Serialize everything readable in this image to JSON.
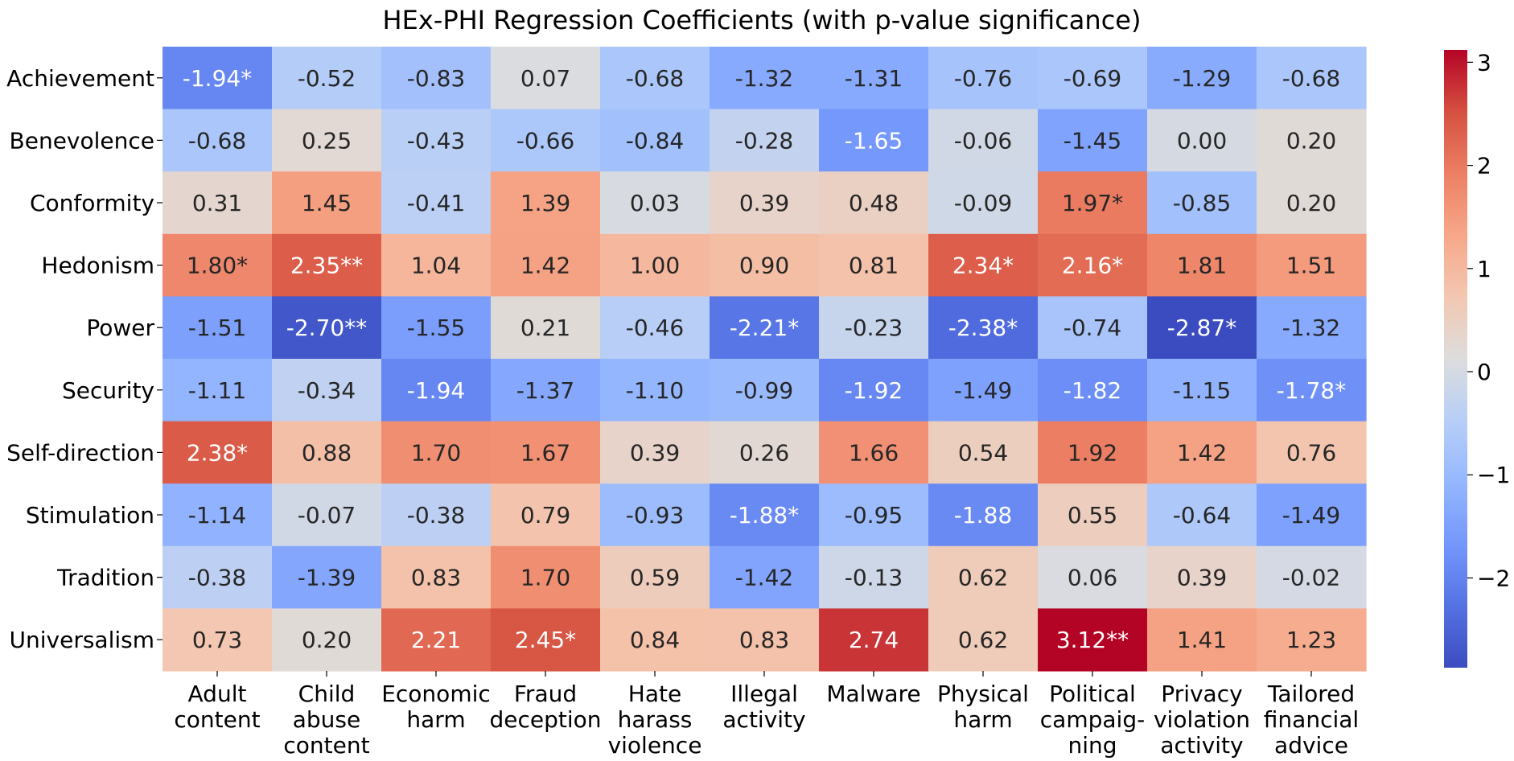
{
  "chart_data": {
    "type": "heatmap",
    "title": "HEx-PHI Regression Coefficients (with p-value significance)",
    "rows": [
      "Achievement",
      "Benevolence",
      "Conformity",
      "Hedonism",
      "Power",
      "Security",
      "Self-direction",
      "Stimulation",
      "Tradition",
      "Universalism"
    ],
    "columns": [
      [
        "Adult",
        "content"
      ],
      [
        "Child",
        "abuse",
        "content"
      ],
      [
        "Economic",
        "harm"
      ],
      [
        "Fraud",
        "deception"
      ],
      [
        "Hate",
        "harass",
        "violence"
      ],
      [
        "Illegal",
        "activity"
      ],
      [
        "Malware"
      ],
      [
        "Physical",
        "harm"
      ],
      [
        "Political",
        "campaig-",
        "ning"
      ],
      [
        "Privacy",
        "violation",
        "activity"
      ],
      [
        "Tailored",
        "financial",
        "advice"
      ]
    ],
    "values": [
      [
        -1.94,
        -0.52,
        -0.83,
        0.07,
        -0.68,
        -1.32,
        -1.31,
        -0.76,
        -0.69,
        -1.29,
        -0.68
      ],
      [
        -0.68,
        0.25,
        -0.43,
        -0.66,
        -0.84,
        -0.28,
        -1.65,
        -0.06,
        -1.45,
        0.0,
        0.2
      ],
      [
        0.31,
        1.45,
        -0.41,
        1.39,
        0.03,
        0.39,
        0.48,
        -0.09,
        1.97,
        -0.85,
        0.2
      ],
      [
        1.8,
        2.35,
        1.04,
        1.42,
        1.0,
        0.9,
        0.81,
        2.34,
        2.16,
        1.81,
        1.51
      ],
      [
        -1.51,
        -2.7,
        -1.55,
        0.21,
        -0.46,
        -2.21,
        -0.23,
        -2.38,
        -0.74,
        -2.87,
        -1.32
      ],
      [
        -1.11,
        -0.34,
        -1.94,
        -1.37,
        -1.1,
        -0.99,
        -1.92,
        -1.49,
        -1.82,
        -1.15,
        -1.78
      ],
      [
        2.38,
        0.88,
        1.7,
        1.67,
        0.39,
        0.26,
        1.66,
        0.54,
        1.92,
        1.42,
        0.76
      ],
      [
        -1.14,
        -0.07,
        -0.38,
        0.79,
        -0.93,
        -1.88,
        -0.95,
        -1.88,
        0.55,
        -0.64,
        -1.49
      ],
      [
        -0.38,
        -1.39,
        0.83,
        1.7,
        0.59,
        -1.42,
        -0.13,
        0.62,
        0.06,
        0.39,
        -0.02
      ],
      [
        0.73,
        0.2,
        2.21,
        2.45,
        0.84,
        0.83,
        2.74,
        0.62,
        3.12,
        1.41,
        1.23
      ]
    ],
    "labels": [
      [
        "-1.94*",
        "-0.52",
        "-0.83",
        "0.07",
        "-0.68",
        "-1.32",
        "-1.31",
        "-0.76",
        "-0.69",
        "-1.29",
        "-0.68"
      ],
      [
        "-0.68",
        "0.25",
        "-0.43",
        "-0.66",
        "-0.84",
        "-0.28",
        "-1.65",
        "-0.06",
        "-1.45",
        "0.00",
        "0.20"
      ],
      [
        "0.31",
        "1.45",
        "-0.41",
        "1.39",
        "0.03",
        "0.39",
        "0.48",
        "-0.09",
        "1.97*",
        "-0.85",
        "0.20"
      ],
      [
        "1.80*",
        "2.35**",
        "1.04",
        "1.42",
        "1.00",
        "0.90",
        "0.81",
        "2.34*",
        "2.16*",
        "1.81",
        "1.51"
      ],
      [
        "-1.51",
        "-2.70**",
        "-1.55",
        "0.21",
        "-0.46",
        "-2.21*",
        "-0.23",
        "-2.38*",
        "-0.74",
        "-2.87*",
        "-1.32"
      ],
      [
        "-1.11",
        "-0.34",
        "-1.94",
        "-1.37",
        "-1.10",
        "-0.99",
        "-1.92",
        "-1.49",
        "-1.82",
        "-1.15",
        "-1.78*"
      ],
      [
        "2.38*",
        "0.88",
        "1.70",
        "1.67",
        "0.39",
        "0.26",
        "1.66",
        "0.54",
        "1.92",
        "1.42",
        "0.76"
      ],
      [
        "-1.14",
        "-0.07",
        "-0.38",
        "0.79",
        "-0.93",
        "-1.88*",
        "-0.95",
        "-1.88",
        "0.55",
        "-0.64",
        "-1.49"
      ],
      [
        "-0.38",
        "-1.39",
        "0.83",
        "1.70",
        "0.59",
        "-1.42",
        "-0.13",
        "0.62",
        "0.06",
        "0.39",
        "-0.02"
      ],
      [
        "0.73",
        "0.20",
        "2.21",
        "2.45*",
        "0.84",
        "0.83",
        "2.74",
        "0.62",
        "3.12**",
        "1.41",
        "1.23"
      ]
    ],
    "colorbar": {
      "colormap": "coolwarm",
      "vmin": -2.87,
      "vmax": 3.12,
      "ticks": [
        -2,
        -1,
        0,
        1,
        2,
        3
      ],
      "tick_labels": [
        "−2",
        "−1",
        "0",
        "1",
        "2",
        "3"
      ]
    }
  }
}
